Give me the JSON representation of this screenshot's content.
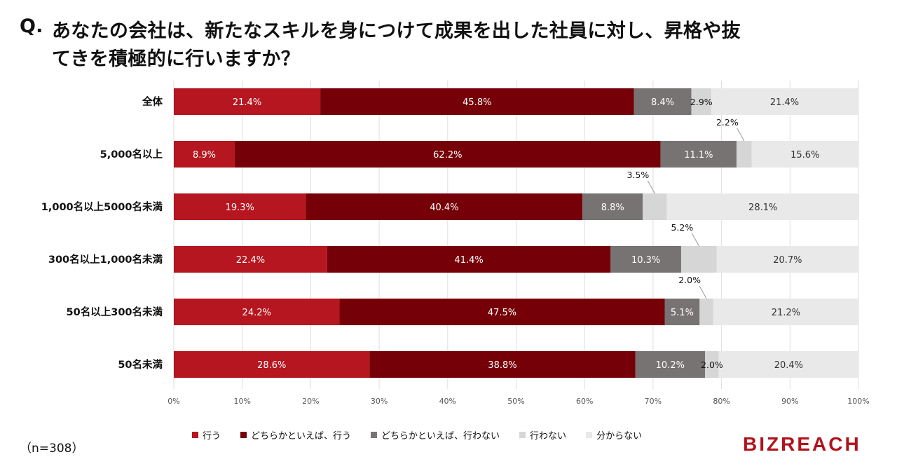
{
  "title": {
    "prefix": "Q.",
    "line1": "あなたの会社は、新たなスキルを身につけて成果を出した社員に対し、昇格や抜",
    "line2": "てきを積極的に行いますか？"
  },
  "chart_data": {
    "type": "bar",
    "orientation": "horizontal-stacked-100",
    "categories": [
      "全体",
      "5,000名以上",
      "1,000名以上5000名未満",
      "300名以上1,000名未満",
      "50名以上300名未満",
      "50名未満"
    ],
    "series": [
      {
        "name": "行う",
        "color": "#b5161f",
        "values": [
          21.4,
          8.9,
          19.3,
          22.4,
          24.2,
          28.6
        ]
      },
      {
        "name": "どちらかといえば、行う",
        "color": "#760008",
        "values": [
          45.8,
          62.2,
          40.4,
          41.4,
          47.5,
          38.8
        ]
      },
      {
        "name": "どちらかといえば、行わない",
        "color": "#787373",
        "values": [
          8.4,
          11.1,
          8.8,
          10.3,
          5.1,
          10.2
        ]
      },
      {
        "name": "行わない",
        "color": "#d6d6d6",
        "values": [
          2.9,
          2.2,
          3.5,
          5.2,
          2.0,
          2.0
        ]
      },
      {
        "name": "分からない",
        "color": "#e9e9e9",
        "values": [
          21.4,
          15.6,
          28.1,
          20.7,
          21.2,
          20.4
        ]
      }
    ],
    "data_labels": [
      [
        "21.4%",
        "45.8%",
        "8.4%",
        "2.9%",
        "21.4%"
      ],
      [
        "8.9%",
        "62.2%",
        "11.1%",
        "2.2%",
        "15.6%"
      ],
      [
        "19.3%",
        "40.4%",
        "8.8%",
        "3.5%",
        "28.1%"
      ],
      [
        "22.4%",
        "41.4%",
        "10.3%",
        "5.2%",
        "20.7%"
      ],
      [
        "24.2%",
        "47.5%",
        "5.1%",
        "2.0%",
        "21.2%"
      ],
      [
        "28.6%",
        "38.8%",
        "10.2%",
        "2.0%",
        "20.4%"
      ]
    ],
    "x_ticks": [
      "0%",
      "10%",
      "20%",
      "30%",
      "40%",
      "50%",
      "60%",
      "70%",
      "80%",
      "90%",
      "100%"
    ],
    "xlim": [
      0,
      100
    ],
    "grid": true,
    "legend_position": "bottom"
  },
  "footer": {
    "sample_size": "（n=308）",
    "brand": "BIZREACH"
  }
}
